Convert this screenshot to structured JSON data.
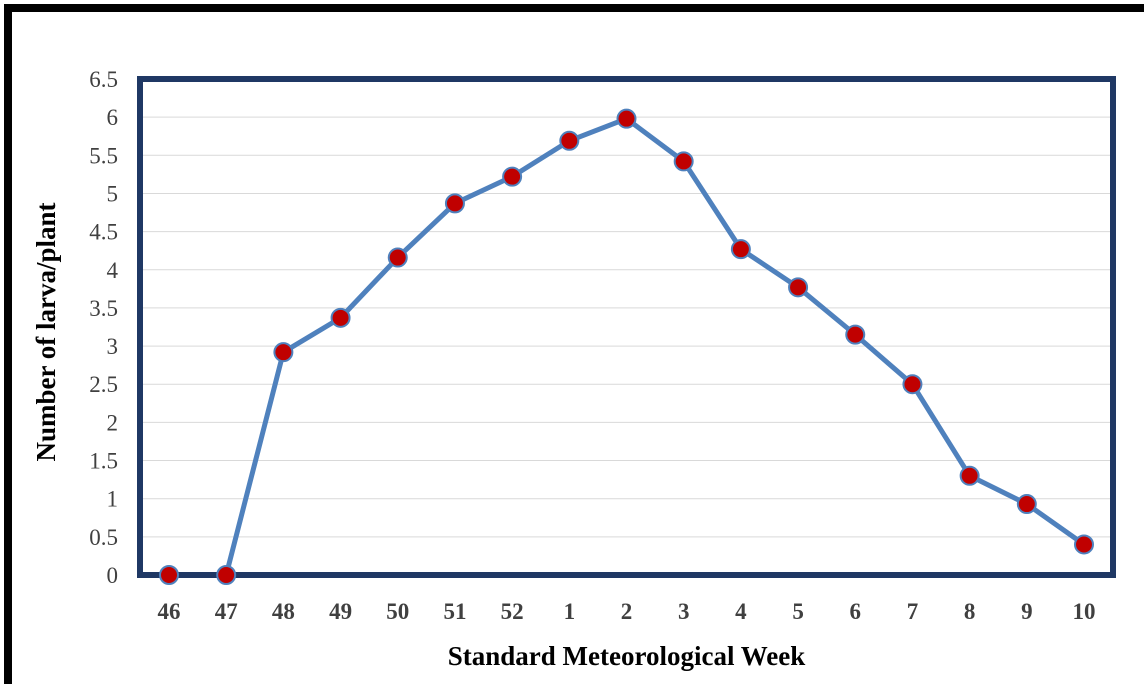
{
  "chart_data": {
    "type": "line",
    "title": "",
    "xlabel": "Standard Meteorological Week",
    "ylabel": "Number of larva/plant",
    "categories": [
      "46",
      "47",
      "48",
      "49",
      "50",
      "51",
      "52",
      "1",
      "2",
      "3",
      "4",
      "5",
      "6",
      "7",
      "8",
      "9",
      "10"
    ],
    "series": [
      {
        "name": "",
        "values": [
          0,
          0,
          2.92,
          3.37,
          4.16,
          4.87,
          5.22,
          5.69,
          5.98,
          5.42,
          4.27,
          3.77,
          3.15,
          2.5,
          1.3,
          0.93,
          0.4
        ]
      }
    ],
    "yticks": [
      "0",
      "0.5",
      "1",
      "1.5",
      "2",
      "2.5",
      "3",
      "3.5",
      "4",
      "4.5",
      "5",
      "5.5",
      "6",
      "6.5"
    ],
    "ylim": [
      0,
      6.5
    ],
    "grid": "horizontal",
    "legend": "none",
    "colors": {
      "line": "#4f81bd",
      "marker_fill": "#c00000",
      "marker_edge": "#4f81bd",
      "plot_border": "#1f3864",
      "grid": "#d9d9d9"
    }
  }
}
